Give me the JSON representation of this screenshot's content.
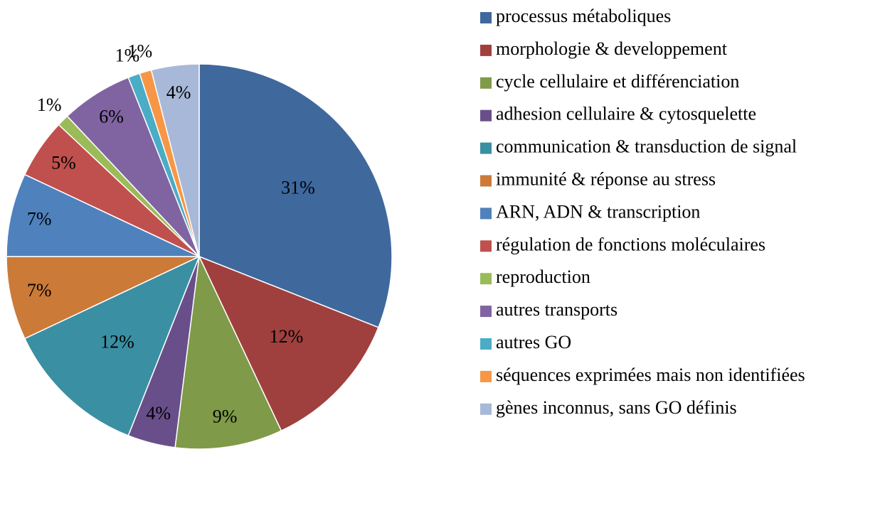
{
  "chart_data": {
    "type": "pie",
    "categories": [
      "processus métaboliques",
      "morphologie & developpement",
      "cycle cellulaire et différenciation",
      "adhesion cellulaire & cytosquelette",
      "communication & transduction de signal",
      "immunité & réponse au stress",
      "ARN, ADN & transcription",
      "régulation de fonctions moléculaires",
      "reproduction",
      "autres transports",
      "autres GO",
      "séquences exprimées mais non identifiées",
      "gènes inconnus, sans GO définis"
    ],
    "values": [
      31,
      12,
      9,
      4,
      12,
      7,
      7,
      5,
      1,
      6,
      1,
      1,
      4
    ],
    "value_labels": [
      "31%",
      "12%",
      "9%",
      "4%",
      "12%",
      "7%",
      "7%",
      "5%",
      "1%",
      "6%",
      "1%",
      "1%",
      "4%"
    ],
    "colors": [
      "#3f689d",
      "#a0403e",
      "#7f9a48",
      "#694f8a",
      "#3a8fa3",
      "#cc7a38",
      "#4f81bd",
      "#c0504d",
      "#9bbb59",
      "#8064a2",
      "#4bacc6",
      "#f79646",
      "#a8b8d8"
    ],
    "legend": "right"
  }
}
